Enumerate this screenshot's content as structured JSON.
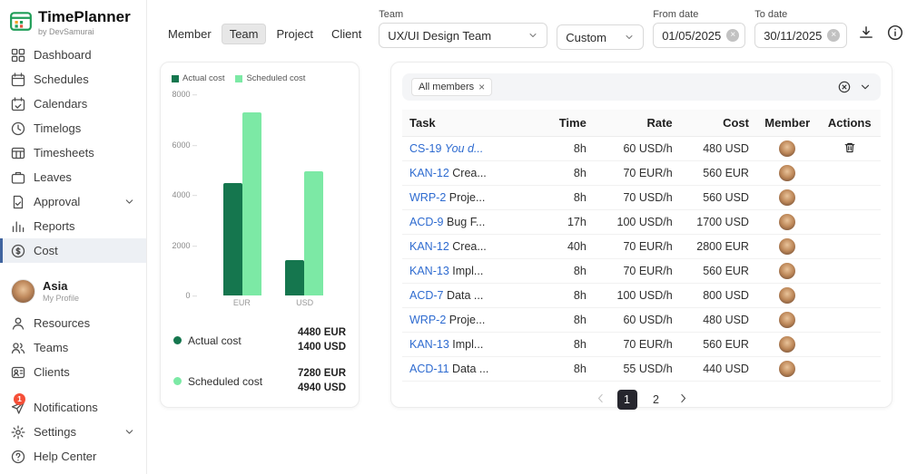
{
  "app": {
    "name": "TimePlanner",
    "byline": "by DevSamurai"
  },
  "sidebar": {
    "main_items": [
      {
        "label": "Dashboard",
        "icon": "grid"
      },
      {
        "label": "Schedules",
        "icon": "calendar-arrow"
      },
      {
        "label": "Calendars",
        "icon": "calendar-check"
      },
      {
        "label": "Timelogs",
        "icon": "clock"
      },
      {
        "label": "Timesheets",
        "icon": "table"
      },
      {
        "label": "Leaves",
        "icon": "briefcase"
      },
      {
        "label": "Approval",
        "icon": "doc-check",
        "chevron": true
      },
      {
        "label": "Reports",
        "icon": "chart"
      },
      {
        "label": "Cost",
        "icon": "dollar",
        "active": true
      }
    ],
    "user": {
      "name": "Asia",
      "subtitle": "My Profile"
    },
    "secondary_items": [
      {
        "label": "Resources",
        "icon": "person"
      },
      {
        "label": "Teams",
        "icon": "people"
      },
      {
        "label": "Clients",
        "icon": "client"
      }
    ],
    "footer_items": [
      {
        "label": "Notifications",
        "icon": "send",
        "badge": "1"
      },
      {
        "label": "Settings",
        "icon": "gear",
        "chevron": true
      },
      {
        "label": "Help Center",
        "icon": "help"
      }
    ]
  },
  "header": {
    "tabs": [
      {
        "label": "Member"
      },
      {
        "label": "Team",
        "active": true
      },
      {
        "label": "Project"
      },
      {
        "label": "Client"
      }
    ],
    "team_label": "Team",
    "team_value": "UX/UI Design Team",
    "range_value": "Custom",
    "from_label": "From date",
    "from_value": "01/05/2025",
    "to_label": "To date",
    "to_value": "30/11/2025"
  },
  "chart_data": {
    "type": "bar",
    "title": "",
    "categories": [
      "EUR",
      "USD"
    ],
    "series": [
      {
        "name": "Actual cost",
        "values": [
          4480,
          1400
        ],
        "color": "#15764e"
      },
      {
        "name": "Scheduled cost",
        "values": [
          7280,
          4940
        ],
        "color": "#7ce9a5"
      }
    ],
    "ylim": [
      0,
      8000
    ],
    "yticks": [
      0,
      2000,
      4000,
      6000,
      8000
    ],
    "legend_position": "top",
    "grid": false
  },
  "chart_card": {
    "summary": [
      {
        "label": "Actual cost",
        "color": "#15764e",
        "lines": [
          "4480 EUR",
          "1400 USD"
        ]
      },
      {
        "label": "Scheduled cost",
        "color": "#7ce9a5",
        "lines": [
          "7280 EUR",
          "4940 USD"
        ]
      }
    ]
  },
  "table": {
    "filter_chip": "All members",
    "columns": [
      "Task",
      "Time",
      "Rate",
      "Cost",
      "Member",
      "Actions"
    ],
    "rows": [
      {
        "task_id": "CS-19",
        "task_name": "You d...",
        "italic": true,
        "time": "8h",
        "rate": "60 USD/h",
        "cost": "480 USD",
        "action": true
      },
      {
        "task_id": "KAN-12",
        "task_name": "Crea...",
        "time": "8h",
        "rate": "70 EUR/h",
        "cost": "560 EUR"
      },
      {
        "task_id": "WRP-2",
        "task_name": "Proje...",
        "time": "8h",
        "rate": "70 USD/h",
        "cost": "560 USD"
      },
      {
        "task_id": "ACD-9",
        "task_name": "Bug F...",
        "time": "17h",
        "rate": "100 USD/h",
        "cost": "1700 USD"
      },
      {
        "task_id": "KAN-12",
        "task_name": "Crea...",
        "time": "40h",
        "rate": "70 EUR/h",
        "cost": "2800 EUR"
      },
      {
        "task_id": "KAN-13",
        "task_name": "Impl...",
        "time": "8h",
        "rate": "70 EUR/h",
        "cost": "560 EUR"
      },
      {
        "task_id": "ACD-7",
        "task_name": "Data ...",
        "time": "8h",
        "rate": "100 USD/h",
        "cost": "800 USD"
      },
      {
        "task_id": "WRP-2",
        "task_name": "Proje...",
        "time": "8h",
        "rate": "60 USD/h",
        "cost": "480 USD"
      },
      {
        "task_id": "KAN-13",
        "task_name": "Impl...",
        "time": "8h",
        "rate": "70 EUR/h",
        "cost": "560 EUR"
      },
      {
        "task_id": "ACD-11",
        "task_name": "Data ...",
        "time": "8h",
        "rate": "55 USD/h",
        "cost": "440 USD"
      }
    ],
    "pagination": {
      "pages": [
        "1",
        "2"
      ],
      "active": "1"
    }
  },
  "colors": {
    "accent_blue": "#40649f",
    "link_blue": "#2e6bd0",
    "actual_green": "#15764e",
    "scheduled_green": "#7ce9a5",
    "badge_red": "#f54f38"
  }
}
